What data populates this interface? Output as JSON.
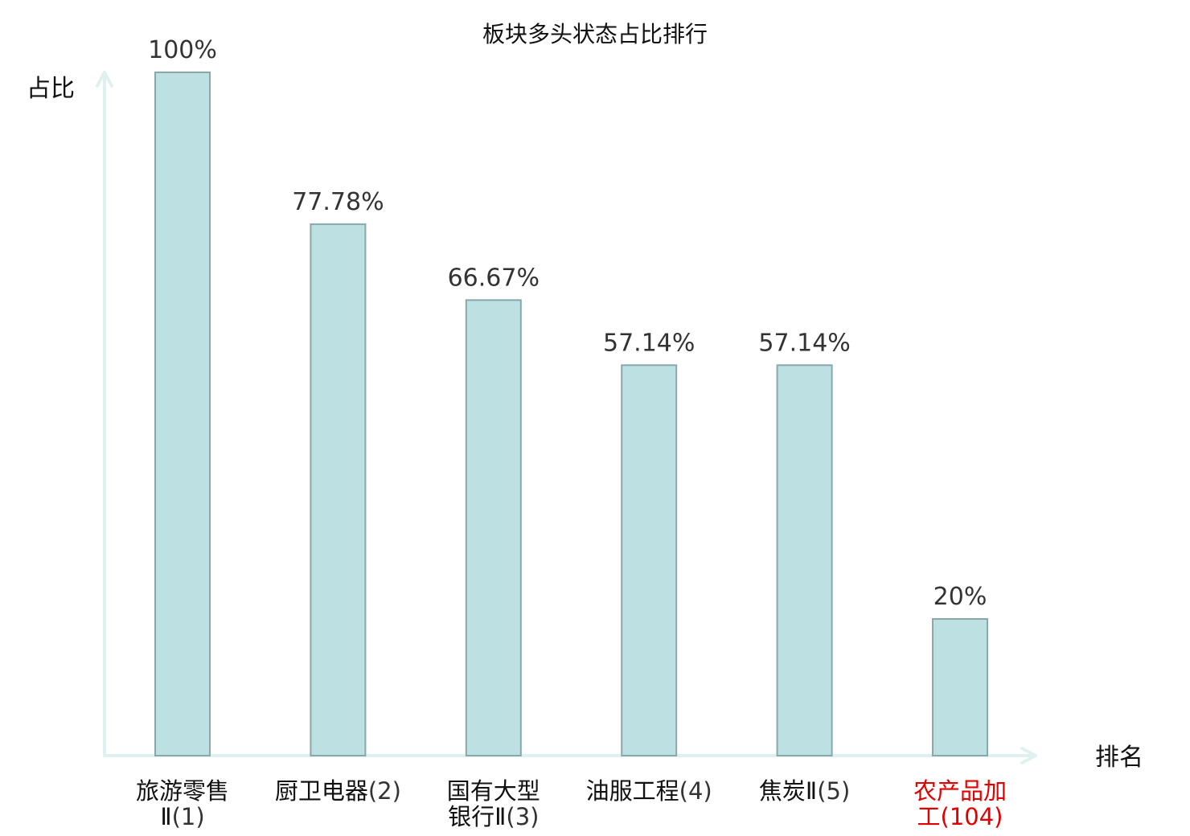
{
  "chart_data": {
    "type": "bar",
    "title": "板块多头状态占比排行",
    "ylabel": "占比",
    "xlabel": "排名",
    "ylim": [
      0,
      100
    ],
    "grid": false,
    "categories": [
      {
        "lines": [
          {
            "name": "旅游零售",
            "rank": ""
          },
          {
            "name": "Ⅱ",
            "rank": "(1)"
          }
        ],
        "highlight": false
      },
      {
        "lines": [
          {
            "name": "厨卫电器",
            "rank": "(2)"
          }
        ],
        "highlight": false
      },
      {
        "lines": [
          {
            "name": "国有大型",
            "rank": ""
          },
          {
            "name": "银行Ⅱ",
            "rank": "(3)"
          }
        ],
        "highlight": false
      },
      {
        "lines": [
          {
            "name": "油服工程",
            "rank": "(4)"
          }
        ],
        "highlight": false
      },
      {
        "lines": [
          {
            "name": "焦炭Ⅱ",
            "rank": "(5)"
          }
        ],
        "highlight": false
      },
      {
        "lines": [
          {
            "name": "农产品加",
            "rank": ""
          },
          {
            "name": "工",
            "rank": "(104)"
          }
        ],
        "highlight": true
      }
    ],
    "values": [
      100,
      77.78,
      66.67,
      57.14,
      57.14,
      20
    ],
    "value_labels": [
      "100%",
      "77.78%",
      "66.67%",
      "57.14%",
      "57.14%",
      "20%"
    ],
    "colors": {
      "bar_fill": "#bde0e3",
      "bar_stroke": "#8aa7ab",
      "axis": "#dff1ef",
      "label_name": "#111111",
      "label_rank": "#333333",
      "highlight": "#e00000"
    }
  }
}
